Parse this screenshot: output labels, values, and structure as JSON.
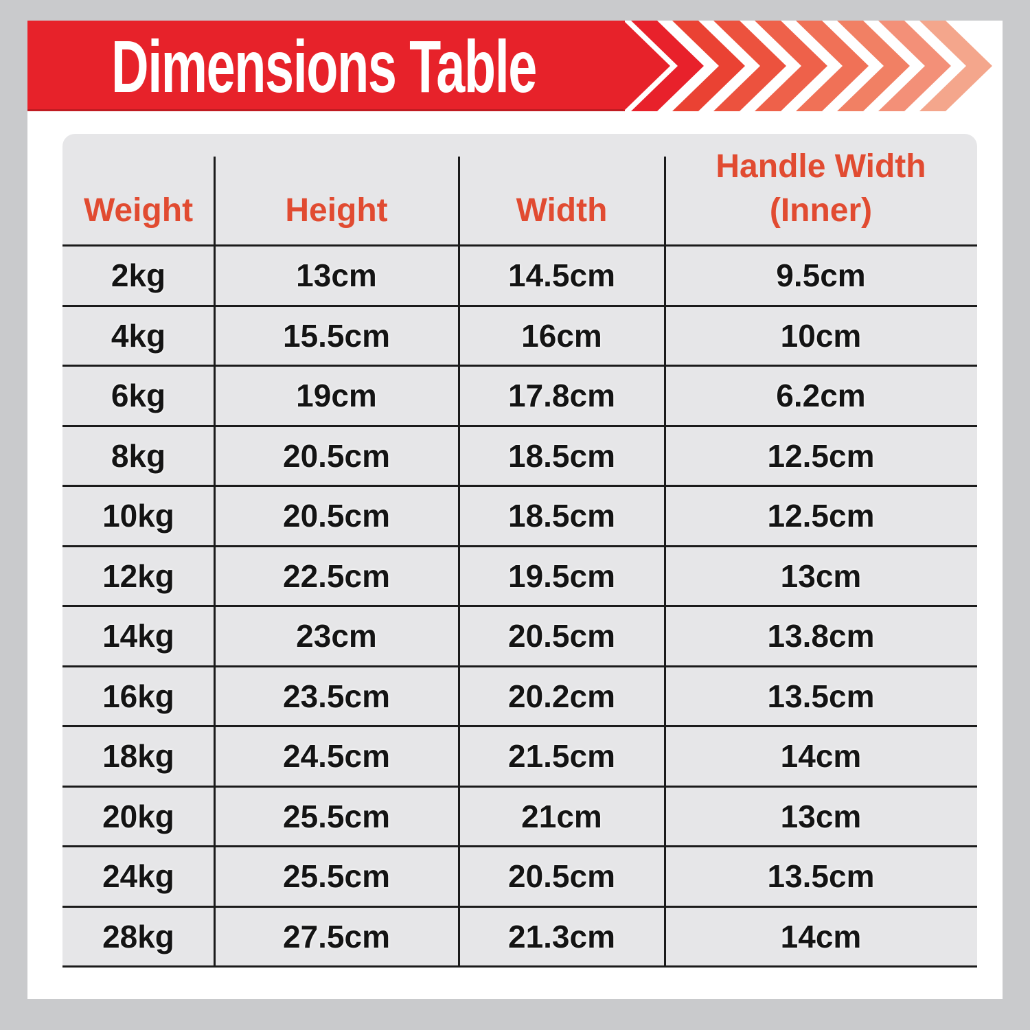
{
  "title": "Dimensions Table",
  "header": [
    {
      "line1": "Weight"
    },
    {
      "line1": "Height"
    },
    {
      "line1": "Width"
    },
    {
      "line1": "Handle Width",
      "line2": "(Inner)"
    }
  ],
  "chart_data": {
    "type": "table",
    "title": "Dimensions Table",
    "columns": [
      "Weight",
      "Height",
      "Width",
      "Handle Width (Inner)"
    ],
    "rows": [
      [
        "2kg",
        "13cm",
        "14.5cm",
        "9.5cm"
      ],
      [
        "4kg",
        "15.5cm",
        "16cm",
        "10cm"
      ],
      [
        "6kg",
        "19cm",
        "17.8cm",
        "6.2cm"
      ],
      [
        "8kg",
        "20.5cm",
        "18.5cm",
        "12.5cm"
      ],
      [
        "10kg",
        "20.5cm",
        "18.5cm",
        "12.5cm"
      ],
      [
        "12kg",
        "22.5cm",
        "19.5cm",
        "13cm"
      ],
      [
        "14kg",
        "23cm",
        "20.5cm",
        "13.8cm"
      ],
      [
        "16kg",
        "23.5cm",
        "20.2cm",
        "13.5cm"
      ],
      [
        "18kg",
        "24.5cm",
        "21.5cm",
        "14cm"
      ],
      [
        "20kg",
        "25.5cm",
        "21cm",
        "13cm"
      ],
      [
        "24kg",
        "25.5cm",
        "20.5cm",
        "13.5cm"
      ],
      [
        "28kg",
        "27.5cm",
        "21.3cm",
        "14cm"
      ]
    ]
  },
  "colors": {
    "page_bg": "#c9cacc",
    "card_bg": "#ffffff",
    "banner_red": "#e7222a",
    "banner_edge": "#c01c22",
    "table_bg": "#e6e6e8",
    "grid_line": "#1b1b1b",
    "header_text": "#e14b31",
    "cell_text": "#141414",
    "title_text": "#ffffff",
    "chevron_colors": [
      "#e8212b",
      "#ea4233",
      "#ec523e",
      "#ee614a",
      "#f07157",
      "#f18064",
      "#f39078",
      "#f4a68c"
    ]
  }
}
